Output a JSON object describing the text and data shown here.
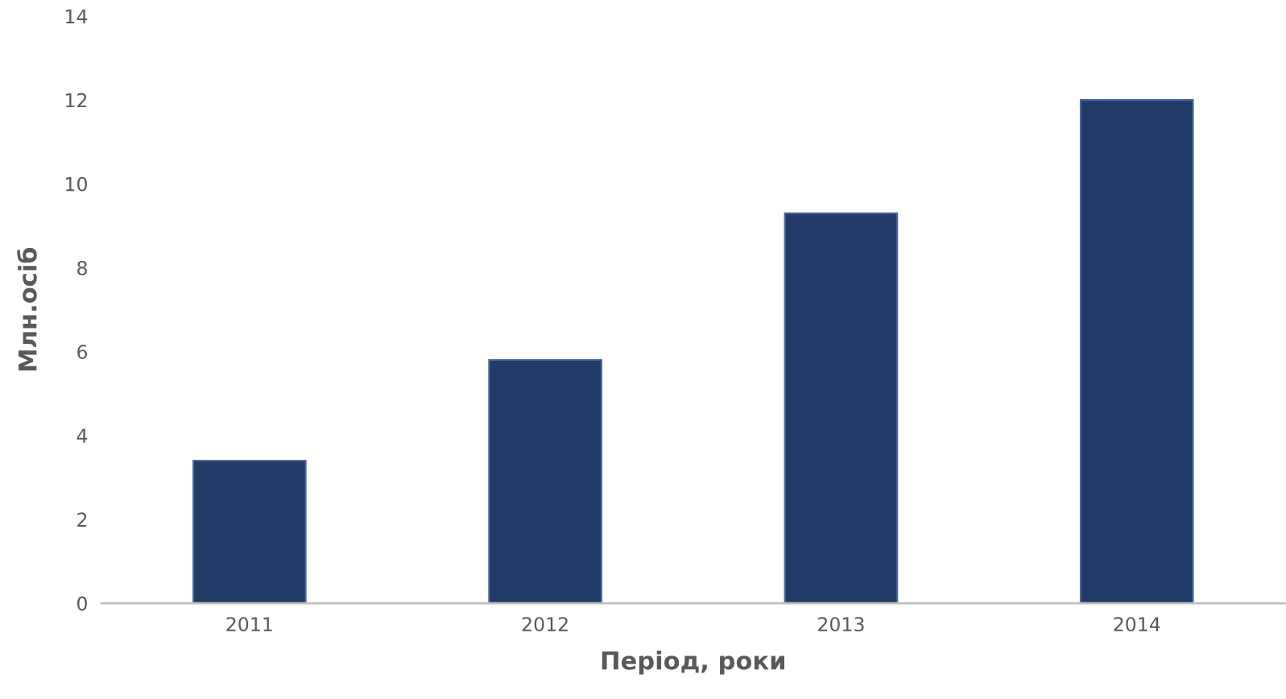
{
  "chart_data": {
    "type": "bar",
    "xlabel": "Період, роки",
    "ylabel": "Млн.осіб",
    "categories": [
      "2011",
      "2012",
      "2013",
      "2014"
    ],
    "values": [
      3.4,
      5.8,
      9.3,
      12.0
    ],
    "color": "#223b66",
    "ylim": [
      0,
      14
    ],
    "yticks": [
      0,
      2,
      4,
      6,
      8,
      10,
      12,
      14
    ],
    "grid": false,
    "legend": false
  }
}
